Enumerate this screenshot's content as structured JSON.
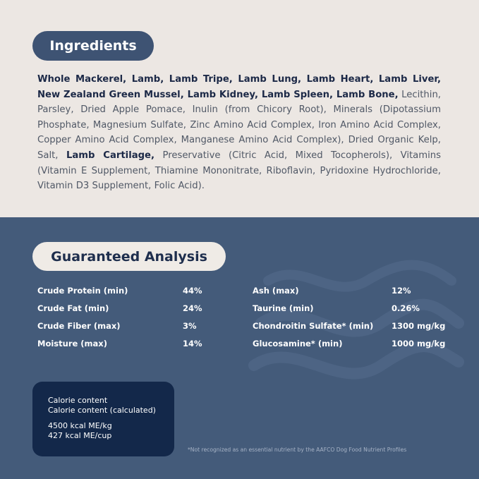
{
  "ingredients": {
    "title": "Ingredients",
    "segments": [
      {
        "text": "Whole Mackerel, Lamb, Lamb Tripe, Lamb Lung, Lamb Heart, Lamb Liver, New Zealand Green Mussel, Lamb Kidney, Lamb Spleen, Lamb Bone,",
        "style": "bold"
      },
      {
        "text": "Lecithin, Parsley, Dried Apple Pomace, Inulin (from Chicory Root), Minerals (Dipotassium Phosphate, Magnesium Sulfate, Zinc Amino Acid Complex, Iron Amino Acid Complex, Copper Amino Acid Complex, Manganese Amino Acid Complex), Dried Organic Kelp, Salt,",
        "style": "regular"
      },
      {
        "text": "Lamb Cartilage,",
        "style": "bold"
      },
      {
        "text": "Preservative (Citric Acid, Mixed Tocopherols), Vitamins (Vitamin E Supplement, Thiamine Mononitrate, Riboflavin, Pyridoxine Hydrochloride, Vitamin D3 Supplement, Folic Acid).",
        "style": "regular"
      }
    ]
  },
  "analysis": {
    "title": "Guaranteed Analysis",
    "columns": [
      {
        "rows": [
          {
            "name": "Crude Protein (min)",
            "value": "44%"
          },
          {
            "name": "Crude Fat (min)",
            "value": "24%"
          },
          {
            "name": "Crude Fiber (max)",
            "value": "3%"
          },
          {
            "name": "Moisture (max)",
            "value": "14%"
          }
        ]
      },
      {
        "rows": [
          {
            "name": "Ash (max)",
            "value": "12%"
          },
          {
            "name": "Taurine (min)",
            "value": "0.26%"
          },
          {
            "name": "Chondroitin Sulfate* (min)",
            "value": "1300 mg/kg"
          },
          {
            "name": "Glucosamine* (min)",
            "value": "1000 mg/kg"
          }
        ]
      }
    ]
  },
  "calorie": {
    "lines": [
      "Calorie content",
      "Calorie content (calculated)"
    ],
    "values": [
      "4500 kcal ME/kg",
      "427 kcal ME/cup"
    ]
  },
  "footnote": "*Not recognized as an essential nutrient by the AAFCO Dog Food Nutrient Profiles"
}
